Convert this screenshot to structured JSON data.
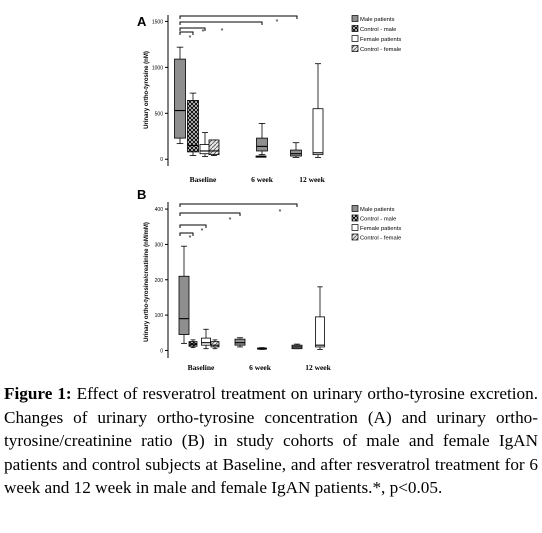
{
  "caption": {
    "label": "Figure 1:",
    "text": "Effect of resveratrol treatment on urinary ortho-tyrosine excretion. Changes of urinary ortho-tyrosine concentration (A) and urinary ortho-tyrosine/creatinine ratio (B) in study cohorts of male and female IgAN patients and control subjects at Baseline, and after resveratrol treatment for 6 week and 12 week in male and female IgAN patients.*, p<0.05."
  },
  "fills": {
    "male_patients": "#8f8f8f",
    "female_patients": "#ffffff",
    "control_male": "#2a2a2a",
    "control_female": "#d8d8d8"
  },
  "chart_data": [
    {
      "panel": "A",
      "type": "boxplot",
      "ylabel": "Urinary ortho-tyrosine (nM)",
      "yticks": [
        0,
        500,
        1000,
        1500
      ],
      "ylim": [
        -30,
        1570
      ],
      "categories": [
        "Baseline",
        "6 week",
        "12 week"
      ],
      "legend": [
        "Male patients",
        "Control - male",
        "Female patients",
        "Control - female"
      ],
      "boxes": [
        {
          "category": "Baseline",
          "series": "Male patients",
          "min": 170,
          "q1": 230,
          "median": 530,
          "q3": 1090,
          "max": 1220
        },
        {
          "category": "Baseline",
          "series": "Control - male",
          "min": 40,
          "q1": 80,
          "median": 150,
          "q3": 640,
          "max": 720
        },
        {
          "category": "Baseline",
          "series": "Female patients",
          "min": 30,
          "q1": 60,
          "median": 90,
          "q3": 160,
          "max": 290
        },
        {
          "category": "Baseline",
          "series": "Control - female",
          "min": 40,
          "q1": 50,
          "median": 90,
          "q3": 210,
          "max": 210
        },
        {
          "category": "6 week",
          "series": "Male patients",
          "min": 50,
          "q1": 90,
          "median": 140,
          "q3": 230,
          "max": 390
        },
        {
          "category": "6 week",
          "series": "Female patients",
          "min": 25,
          "q1": 25,
          "median": 30,
          "q3": 35,
          "max": 35
        },
        {
          "category": "12 week",
          "series": "Male patients",
          "min": 20,
          "q1": 35,
          "median": 60,
          "q3": 100,
          "max": 180
        },
        {
          "category": "12 week",
          "series": "Female patients",
          "min": 20,
          "q1": 50,
          "median": 70,
          "q3": 550,
          "max": 1040
        }
      ],
      "significance": [
        "*",
        "*",
        "*",
        "*"
      ]
    },
    {
      "panel": "B",
      "type": "boxplot",
      "ylabel": "Urinary ortho-tyrosine/creatinine (nM/mM)",
      "yticks": [
        0,
        100,
        200,
        300,
        400
      ],
      "ylim": [
        -10,
        420
      ],
      "categories": [
        "Baseline",
        "6 week",
        "12 week"
      ],
      "legend": [
        "Male patients",
        "Control - male",
        "Female patients",
        "Control - female"
      ],
      "boxes": [
        {
          "category": "Baseline",
          "series": "Male patients",
          "min": 20,
          "q1": 45,
          "median": 90,
          "q3": 210,
          "max": 295
        },
        {
          "category": "Baseline",
          "series": "Control - male",
          "min": 8,
          "q1": 12,
          "median": 18,
          "q3": 25,
          "max": 30
        },
        {
          "category": "Baseline",
          "series": "Female patients",
          "min": 5,
          "q1": 15,
          "median": 22,
          "q3": 35,
          "max": 60
        },
        {
          "category": "Baseline",
          "series": "Control - female",
          "min": 5,
          "q1": 10,
          "median": 15,
          "q3": 25,
          "max": 30
        },
        {
          "category": "6 week",
          "series": "Male patients",
          "min": 10,
          "q1": 15,
          "median": 22,
          "q3": 32,
          "max": 36
        },
        {
          "category": "6 week",
          "series": "Female patients",
          "min": 3,
          "q1": 4,
          "median": 5,
          "q3": 7,
          "max": 8
        },
        {
          "category": "12 week",
          "series": "Male patients",
          "min": 5,
          "q1": 5,
          "median": 10,
          "q3": 15,
          "max": 18
        },
        {
          "category": "12 week",
          "series": "Female patients",
          "min": 3,
          "q1": 10,
          "median": 15,
          "q3": 95,
          "max": 180
        }
      ],
      "significance": [
        "*",
        "*",
        "*",
        "*"
      ]
    }
  ]
}
